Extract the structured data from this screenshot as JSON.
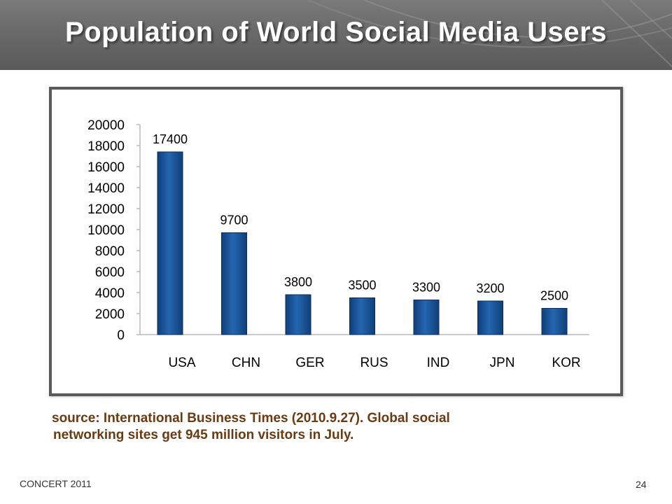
{
  "slide": {
    "title": "Population of World Social Media Users",
    "footer_left": "CONCERT 2011",
    "page_number": "24",
    "colors": {
      "header": "#6a6a6a",
      "bar": "#1c5aa0",
      "source_text": "#6b3a10"
    }
  },
  "source_note": {
    "bullet": "",
    "line1": "source: International Business Times (2010.9.27). Global social",
    "line2": "networking sites get 945 million visitors in July."
  },
  "chart_data": {
    "type": "bar",
    "categories": [
      "USA",
      "CHN",
      "GER",
      "RUS",
      "IND",
      "JPN",
      "KOR"
    ],
    "values": [
      17400,
      9700,
      3800,
      3500,
      3300,
      3200,
      2500
    ],
    "data_labels": [
      "17400",
      "9700",
      "3800",
      "3500",
      "3300",
      "3200",
      "2500"
    ],
    "ylim": [
      0,
      20000
    ],
    "yticks": [
      0,
      2000,
      4000,
      6000,
      8000,
      10000,
      12000,
      14000,
      16000,
      18000,
      20000
    ],
    "grid": false,
    "legend": false
  }
}
